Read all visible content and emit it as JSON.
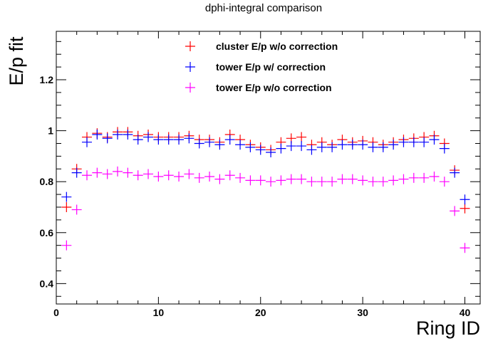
{
  "chart_data": {
    "type": "scatter",
    "title": "dphi-integral comparison",
    "xlabel": "Ring ID",
    "ylabel": "E/p fit",
    "xlim": [
      0,
      41.5
    ],
    "ylim": [
      0.32,
      1.39
    ],
    "x_ticks": [
      0,
      10,
      20,
      30,
      40
    ],
    "y_ticks": [
      0.4,
      0.6,
      0.8,
      1,
      1.2
    ],
    "x_tick_labels": [
      "0",
      "10",
      "20",
      "30",
      "40"
    ],
    "y_tick_labels": [
      "0.4",
      "0.6",
      "0.8",
      "1",
      "1.2"
    ],
    "legend_position": "top-center",
    "grid": false,
    "x": [
      1,
      2,
      3,
      4,
      5,
      6,
      7,
      8,
      9,
      10,
      11,
      12,
      13,
      14,
      15,
      16,
      17,
      18,
      19,
      20,
      21,
      22,
      23,
      24,
      25,
      26,
      27,
      28,
      29,
      30,
      31,
      32,
      33,
      34,
      35,
      36,
      37,
      38,
      39,
      40
    ],
    "series": [
      {
        "name": "cluster E/p w/o correction",
        "color": "#ff0000",
        "values": [
          0.7,
          0.85,
          0.975,
          0.99,
          0.975,
          0.995,
          0.995,
          0.98,
          0.985,
          0.975,
          0.975,
          0.975,
          0.98,
          0.965,
          0.965,
          0.955,
          0.985,
          0.965,
          0.945,
          0.935,
          0.925,
          0.955,
          0.97,
          0.975,
          0.945,
          0.955,
          0.945,
          0.965,
          0.955,
          0.96,
          0.955,
          0.945,
          0.955,
          0.965,
          0.97,
          0.975,
          0.98,
          0.95,
          0.845,
          0.695
        ]
      },
      {
        "name": "tower E/p w/ correction",
        "color": "#0000ff",
        "values": [
          0.74,
          0.835,
          0.955,
          0.985,
          0.97,
          0.985,
          0.985,
          0.965,
          0.975,
          0.965,
          0.965,
          0.965,
          0.97,
          0.95,
          0.955,
          0.945,
          0.965,
          0.945,
          0.935,
          0.925,
          0.915,
          0.93,
          0.94,
          0.94,
          0.925,
          0.935,
          0.935,
          0.945,
          0.945,
          0.945,
          0.935,
          0.935,
          0.945,
          0.955,
          0.955,
          0.955,
          0.965,
          0.93,
          0.835,
          0.73
        ]
      },
      {
        "name": "tower E/p w/o correction",
        "color": "#ff00ff",
        "values": [
          0.55,
          0.69,
          0.825,
          0.835,
          0.83,
          0.84,
          0.835,
          0.825,
          0.83,
          0.82,
          0.825,
          0.82,
          0.83,
          0.815,
          0.82,
          0.81,
          0.825,
          0.815,
          0.805,
          0.805,
          0.8,
          0.805,
          0.81,
          0.81,
          0.8,
          0.8,
          0.8,
          0.81,
          0.81,
          0.805,
          0.8,
          0.8,
          0.805,
          0.81,
          0.815,
          0.815,
          0.82,
          0.8,
          0.685,
          0.54
        ]
      }
    ]
  }
}
